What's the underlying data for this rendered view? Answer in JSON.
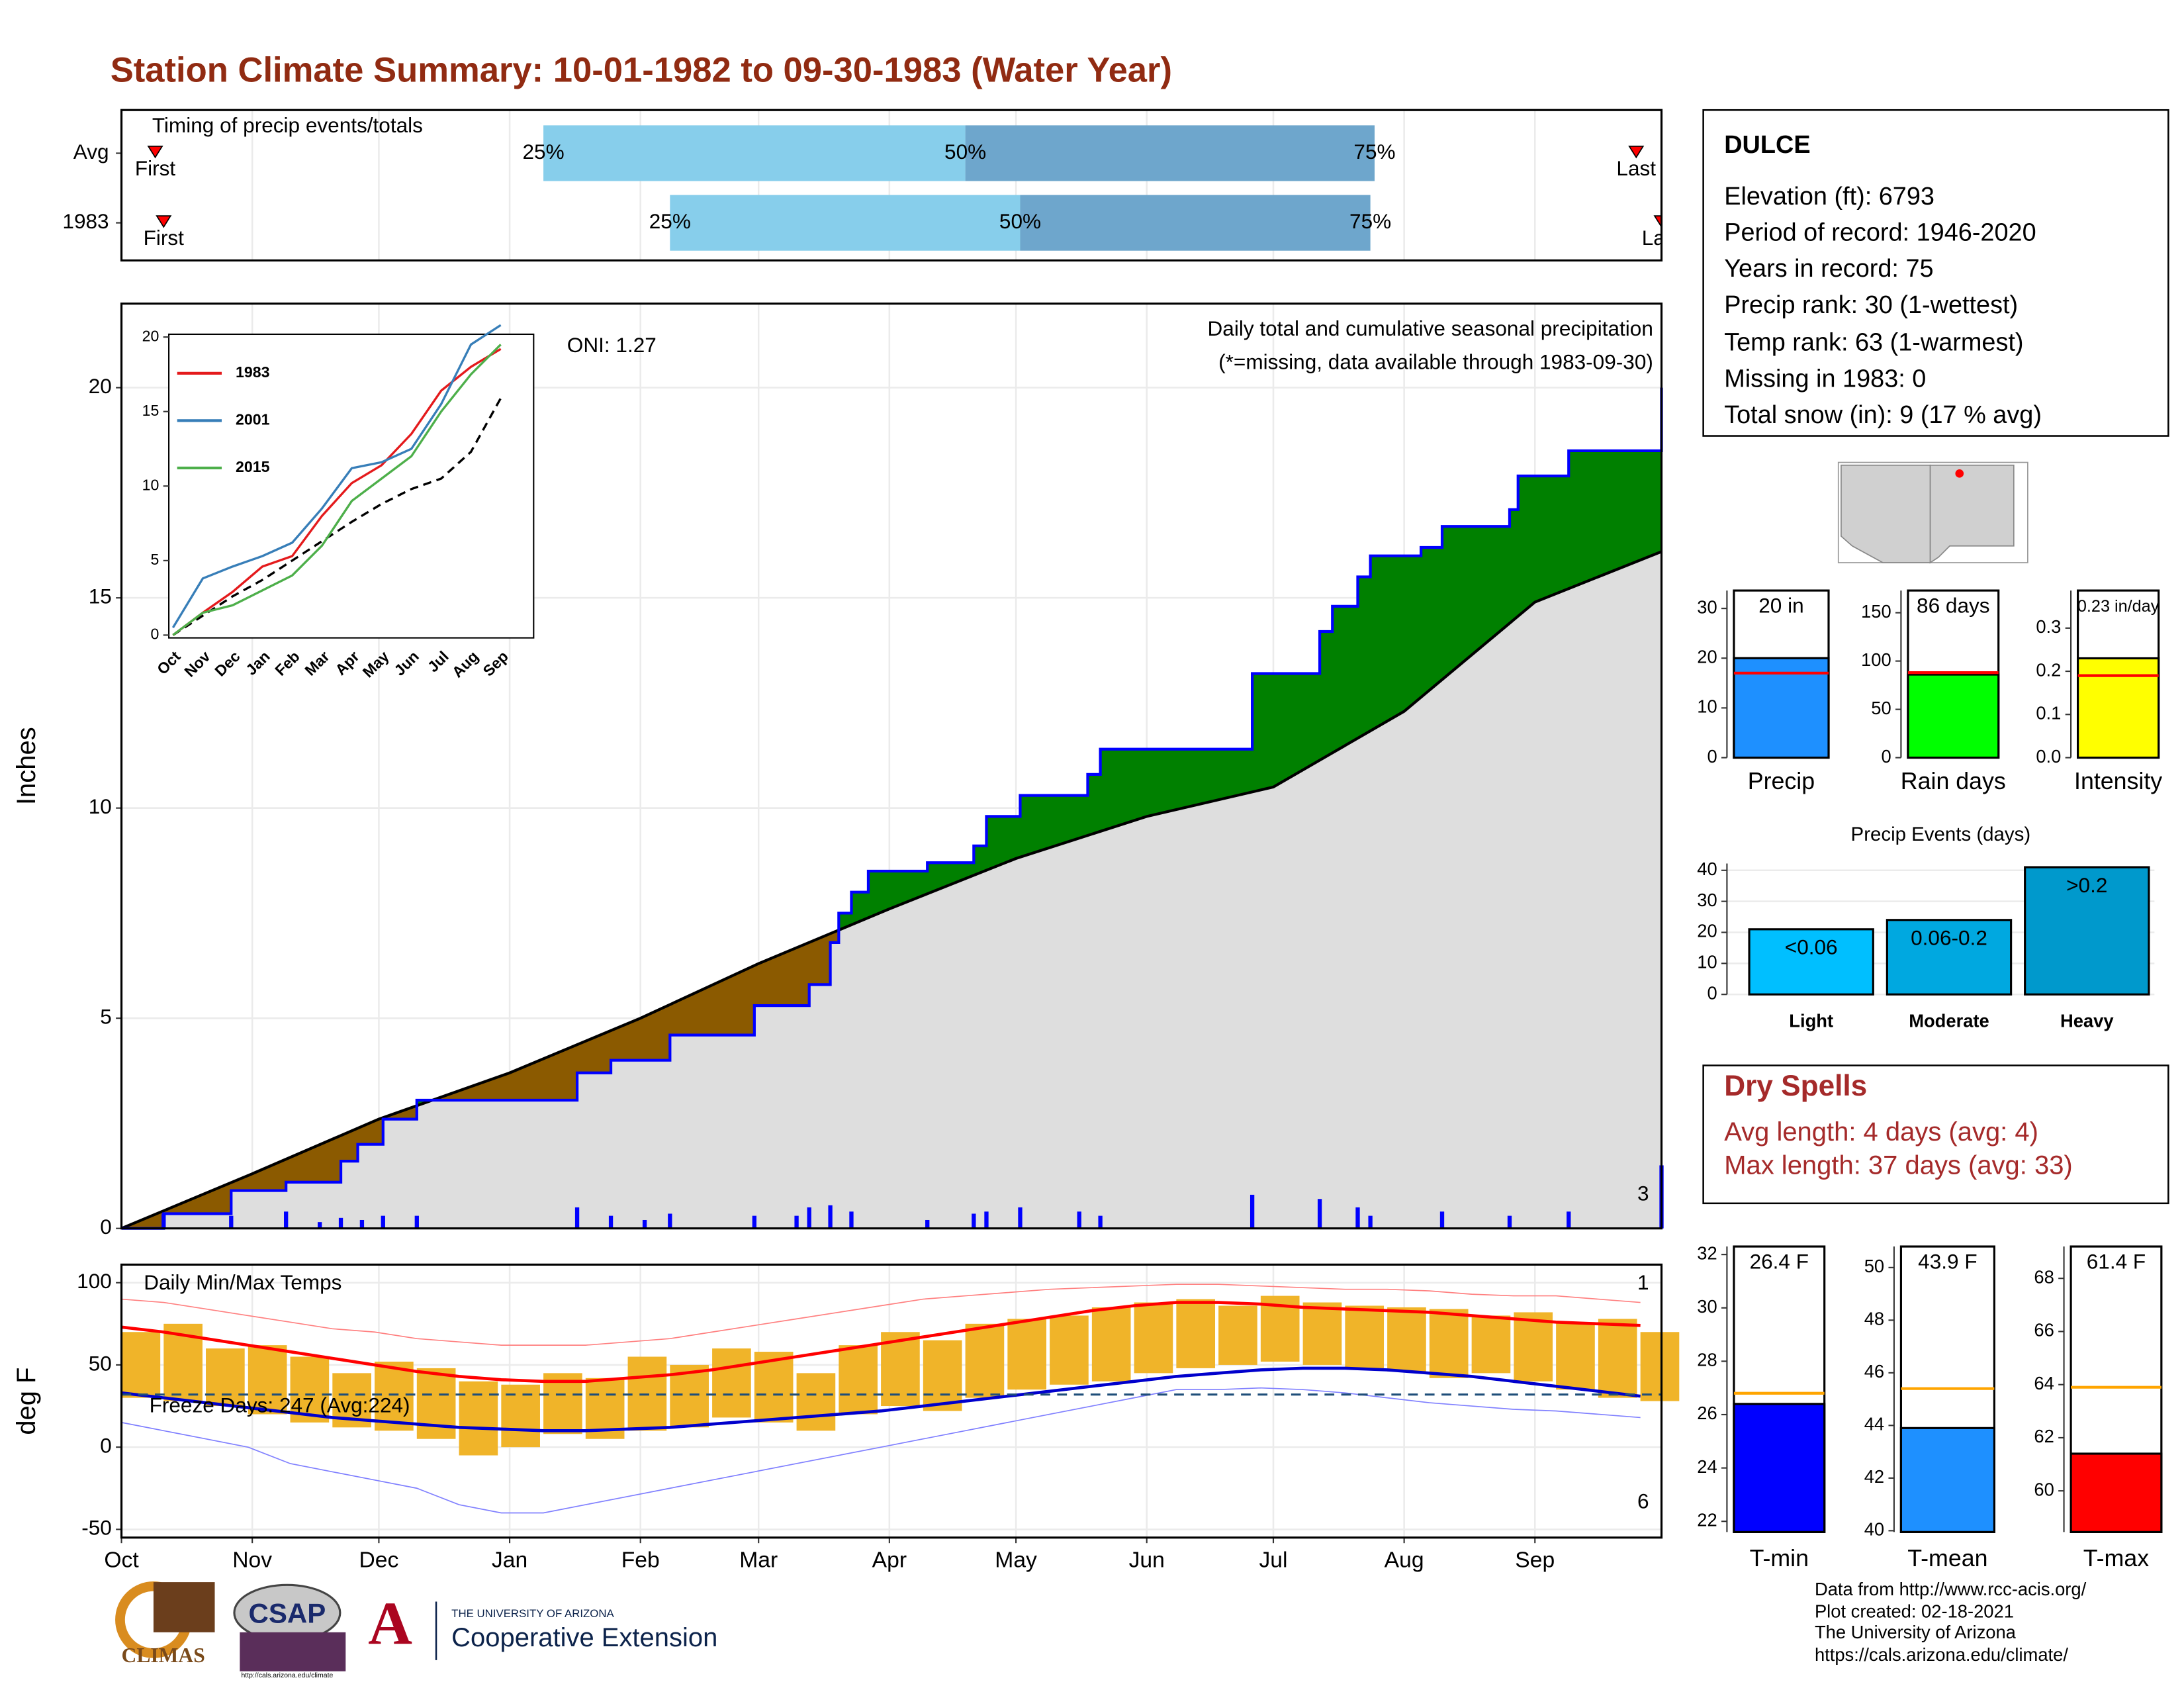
{
  "title": "Station Climate Summary: 10-01-1982 to 09-30-1983 (Water Year)",
  "station": {
    "name": "DULCE",
    "lines": [
      "Elevation (ft): 6793",
      "Period of record: 1946-2020",
      "Years in record: 75",
      "Precip rank: 30 (1-wettest)",
      "Temp rank: 63 (1-warmest)",
      "Missing in 1983: 0",
      "Total snow (in): 9 (17 % avg)"
    ]
  },
  "dry_spells": {
    "title": "Dry Spells",
    "lines": [
      "Avg length: 4 days (avg: 4)",
      "Max length: 37 days (avg: 33)"
    ],
    "color": "#a52a2a"
  },
  "footer": {
    "lines": [
      "Data from http://www.rcc-acis.org/",
      "Plot created: 02-18-2021",
      "The University of Arizona",
      "https://cals.arizona.edu/climate/"
    ]
  },
  "logos": {
    "climas": "CLIMAS",
    "csap": "CSAP",
    "csap_url": "http://cals.arizona.edu/climate",
    "ua_letter": "A",
    "ua": "THE UNIVERSITY OF ARIZONA",
    "coop": "Cooperative Extension"
  },
  "chart_data": [
    {
      "type": "timing",
      "title": "Timing of precip events/totals",
      "rows": [
        {
          "name": "Avg",
          "first": 8,
          "q25": 100,
          "q50": 200,
          "q75": 297,
          "last": 359
        },
        {
          "name": "1983",
          "first": 10,
          "q25": 130,
          "q50": 213,
          "q75": 296,
          "last": 365
        }
      ],
      "labels": {
        "first": "First",
        "q25": "25%",
        "q50": "50%",
        "q75": "75%",
        "last": "Last"
      },
      "colors": [
        "#87ceeb",
        "#6ea6cc"
      ],
      "marker_color": "#ff0000",
      "xlim": [
        0,
        365
      ],
      "xticks": [
        0,
        31,
        61,
        92,
        123,
        151,
        182,
        212,
        243,
        273,
        304,
        335
      ]
    },
    {
      "type": "cumulative",
      "title": "Daily total and cumulative seasonal precipitation",
      "subtitle": "(*=missing, data available through 1983-09-30)",
      "y_label": "Inches",
      "annotation": "ONI: 1.27",
      "exceed_count": 3,
      "xlim": [
        0,
        365
      ],
      "xticks": [
        0,
        31,
        61,
        92,
        123,
        151,
        182,
        212,
        243,
        273,
        304,
        335
      ],
      "ylim": [
        0,
        22
      ],
      "yticks": [
        0,
        5,
        10,
        15,
        20
      ],
      "grid": true,
      "observed": {
        "color": "#0000ff",
        "x": [
          0,
          10,
          26,
          39,
          52,
          56,
          62,
          70,
          105,
          108,
          116,
          130,
          150,
          163,
          168,
          170,
          173,
          177,
          191,
          202,
          205,
          213,
          227,
          229,
          232,
          268,
          284,
          287,
          293,
          296,
          308,
          313,
          329,
          331,
          343,
          364,
          365
        ],
        "values": [
          0,
          0.35,
          0.9,
          1.1,
          1.6,
          2.0,
          2.6,
          3.05,
          3.05,
          3.7,
          4.0,
          4.6,
          5.3,
          5.8,
          6.8,
          7.5,
          8.0,
          8.5,
          8.7,
          9.1,
          9.8,
          10.3,
          10.3,
          10.8,
          11.4,
          13.2,
          14.2,
          14.8,
          15.5,
          16.0,
          16.2,
          16.7,
          17.1,
          17.9,
          18.5,
          18.5,
          20.0
        ]
      },
      "normal": {
        "color": "#000000",
        "x": [
          0,
          31,
          61,
          92,
          123,
          151,
          182,
          212,
          243,
          273,
          304,
          335,
          365
        ],
        "values": [
          0,
          1.3,
          2.6,
          3.7,
          5.0,
          6.3,
          7.6,
          8.8,
          9.8,
          10.5,
          12.3,
          14.9,
          16.1
        ]
      },
      "daily": {
        "color": "#0000ff",
        "x": [
          10,
          26,
          39,
          47,
          52,
          57,
          62,
          70,
          108,
          116,
          124,
          130,
          150,
          160,
          163,
          168,
          173,
          191,
          202,
          205,
          213,
          227,
          232,
          268,
          284,
          293,
          296,
          313,
          329,
          343,
          365
        ],
        "values": [
          0.35,
          0.3,
          0.4,
          0.15,
          0.25,
          0.2,
          0.3,
          0.3,
          0.5,
          0.3,
          0.2,
          0.35,
          0.3,
          0.3,
          0.5,
          0.55,
          0.4,
          0.2,
          0.35,
          0.4,
          0.5,
          0.4,
          0.3,
          0.8,
          0.7,
          0.5,
          0.3,
          0.4,
          0.3,
          0.4,
          1.5
        ]
      },
      "above_color": "#008000",
      "below_color": "#8b5a00",
      "normal_fill": "#dedede",
      "count_color": "#ffa500"
    },
    {
      "type": "line",
      "categories": [
        "Oct",
        "Nov",
        "Dec",
        "Jan",
        "Feb",
        "Mar",
        "Apr",
        "May",
        "Jun",
        "Jul",
        "Aug",
        "Sep"
      ],
      "ylim": [
        0,
        20
      ],
      "yticks": [
        0,
        5,
        10,
        15,
        20
      ],
      "series": [
        {
          "name": "1983",
          "color": "#e41a1c",
          "values": [
            0,
            1.5,
            2.9,
            4.6,
            5.3,
            8.0,
            10.2,
            11.4,
            13.5,
            16.4,
            18.0,
            19.2
          ]
        },
        {
          "name": "2001",
          "color": "#377eb8",
          "values": [
            0.5,
            3.8,
            4.6,
            5.3,
            6.2,
            8.5,
            11.2,
            11.6,
            12.5,
            15.5,
            19.5,
            20.8
          ]
        },
        {
          "name": "2015",
          "color": "#4daf4a",
          "values": [
            0,
            1.5,
            2.0,
            3.0,
            4.0,
            6.0,
            9.0,
            10.5,
            12.0,
            15.0,
            17.5,
            19.5
          ]
        }
      ],
      "normal": {
        "color": "#000000",
        "values": [
          0,
          1.3,
          2.6,
          3.7,
          5.0,
          6.3,
          7.6,
          8.8,
          9.8,
          10.5,
          12.3,
          15.9
        ]
      }
    },
    {
      "type": "temperature",
      "title": "Daily Min/Max Temps",
      "y_label": "deg F",
      "annotation": "Freeze Days: 247 (Avg:224)",
      "high_count": 1,
      "low_count": 6,
      "xlim": [
        0,
        365
      ],
      "xticks": [
        {
          "value": 0,
          "label": "Oct"
        },
        {
          "value": 31,
          "label": "Nov"
        },
        {
          "value": 61,
          "label": "Dec"
        },
        {
          "value": 92,
          "label": "Jan"
        },
        {
          "value": 123,
          "label": "Feb"
        },
        {
          "value": 151,
          "label": "Mar"
        },
        {
          "value": 182,
          "label": "Apr"
        },
        {
          "value": 212,
          "label": "May"
        },
        {
          "value": 243,
          "label": "Jun"
        },
        {
          "value": 273,
          "label": "Jul"
        },
        {
          "value": 304,
          "label": "Aug"
        },
        {
          "value": 335,
          "label": "Sep"
        }
      ],
      "ylim": [
        -55,
        111
      ],
      "yticks": [
        -50,
        0,
        50,
        100
      ],
      "grid": true,
      "x": [
        0,
        10,
        20,
        30,
        40,
        50,
        60,
        70,
        80,
        90,
        100,
        110,
        120,
        130,
        140,
        150,
        160,
        170,
        180,
        190,
        200,
        210,
        220,
        230,
        240,
        250,
        260,
        270,
        280,
        290,
        300,
        310,
        320,
        330,
        340,
        350,
        360
      ],
      "observed_max": [
        70,
        75,
        60,
        62,
        55,
        45,
        52,
        48,
        40,
        38,
        45,
        42,
        55,
        50,
        60,
        58,
        45,
        62,
        70,
        65,
        75,
        78,
        80,
        85,
        88,
        90,
        86,
        92,
        88,
        86,
        85,
        84,
        80,
        82,
        76,
        78,
        70
      ],
      "observed_min": [
        30,
        28,
        25,
        20,
        15,
        12,
        10,
        5,
        -5,
        0,
        8,
        5,
        10,
        12,
        18,
        15,
        10,
        20,
        25,
        22,
        30,
        35,
        38,
        40,
        45,
        48,
        50,
        52,
        50,
        48,
        46,
        42,
        45,
        40,
        35,
        30,
        28
      ],
      "normal_max": [
        73,
        70,
        66,
        62,
        58,
        54,
        50,
        46,
        43,
        41,
        40,
        40,
        42,
        44,
        47,
        51,
        55,
        59,
        63,
        67,
        71,
        75,
        79,
        83,
        86,
        88,
        88,
        87,
        85,
        84,
        83,
        82,
        80,
        78,
        76,
        75,
        74
      ],
      "normal_min": [
        33,
        30,
        27,
        24,
        21,
        18,
        16,
        14,
        12,
        11,
        10,
        10,
        11,
        12,
        14,
        16,
        18,
        20,
        22,
        25,
        28,
        31,
        34,
        37,
        40,
        43,
        45,
        47,
        48,
        48,
        47,
        45,
        43,
        40,
        37,
        34,
        31
      ],
      "record_max": [
        90,
        88,
        84,
        80,
        76,
        72,
        70,
        66,
        64,
        62,
        62,
        62,
        64,
        66,
        70,
        74,
        78,
        82,
        86,
        90,
        92,
        94,
        96,
        97,
        98,
        99,
        99,
        98,
        97,
        96,
        96,
        95,
        93,
        92,
        92,
        90,
        88
      ],
      "record_min": [
        15,
        10,
        5,
        0,
        -10,
        -15,
        -20,
        -25,
        -35,
        -40,
        -40,
        -35,
        -30,
        -25,
        -20,
        -15,
        -10,
        -5,
        0,
        5,
        10,
        15,
        20,
        25,
        30,
        35,
        35,
        36,
        35,
        33,
        30,
        27,
        25,
        23,
        22,
        20,
        18
      ],
      "bar_color": "#f0b429",
      "max_color": "#ff0000",
      "min_color": "#0000cc",
      "record_max_color": "#ff8080",
      "record_min_color": "#8080ff",
      "freeze": 32,
      "freeze_color": "#1f4e79"
    },
    {
      "type": "gauge",
      "category": "Precip",
      "values": [
        20
      ],
      "value_labels": [
        "20 in"
      ],
      "average": 17,
      "color": "#1e90ff",
      "avg_color": "#ff0000",
      "ylim": [
        0,
        33.6
      ],
      "yticks": [
        0,
        10,
        20,
        30
      ]
    },
    {
      "type": "gauge",
      "category": "Rain days",
      "values": [
        86
      ],
      "value_labels": [
        "86 days"
      ],
      "average": 88,
      "color": "#00ff00",
      "avg_color": "#ff0000",
      "ylim": [
        0,
        173
      ],
      "yticks": [
        0,
        50,
        100,
        150
      ]
    },
    {
      "type": "gauge",
      "category": "Intensity",
      "values": [
        0.23
      ],
      "value_labels": [
        "0.23 in/day"
      ],
      "average": 0.19,
      "color": "#ffff00",
      "avg_color": "#ff0000",
      "ylim": [
        0,
        0.387
      ],
      "yticks": [
        {
          "value": 0,
          "label": "0.0"
        },
        0.1,
        0.2,
        0.3
      ]
    },
    {
      "type": "bar",
      "title": "Precip Events (days)",
      "categories": [
        "Light",
        "Moderate",
        "Heavy"
      ],
      "bin_labels": [
        "<0.06",
        "0.06-0.2",
        ">0.2"
      ],
      "values": [
        21,
        24,
        41
      ],
      "colors": [
        "#00bfff",
        "#00a8e0",
        "#0099cc"
      ],
      "ylim": [
        0,
        42.2
      ],
      "yticks": [
        0,
        10,
        20,
        30,
        40
      ],
      "grid": true
    },
    {
      "type": "gauge",
      "category": "T-min",
      "values": [
        26.4
      ],
      "value_labels": [
        "26.4 F"
      ],
      "average": 26.8,
      "color": "#0000ff",
      "avg_color": "#ffa500",
      "ylim": [
        21.6,
        32.3
      ],
      "yticks": [
        22,
        24,
        26,
        28,
        30,
        32
      ]
    },
    {
      "type": "gauge",
      "category": "T-mean",
      "values": [
        43.9
      ],
      "value_labels": [
        "43.9 F"
      ],
      "average": 45.4,
      "color": "#1e90ff",
      "avg_color": "#ffa500",
      "ylim": [
        39.95,
        50.8
      ],
      "yticks": [
        40,
        42,
        44,
        46,
        48,
        50
      ]
    },
    {
      "type": "gauge",
      "category": "T-max",
      "values": [
        61.4
      ],
      "value_labels": [
        "61.4 F"
      ],
      "average": 63.9,
      "color": "#ff0000",
      "avg_color": "#ffa500",
      "ylim": [
        58.45,
        69.2
      ],
      "yticks": [
        60,
        62,
        64,
        66,
        68
      ]
    }
  ]
}
